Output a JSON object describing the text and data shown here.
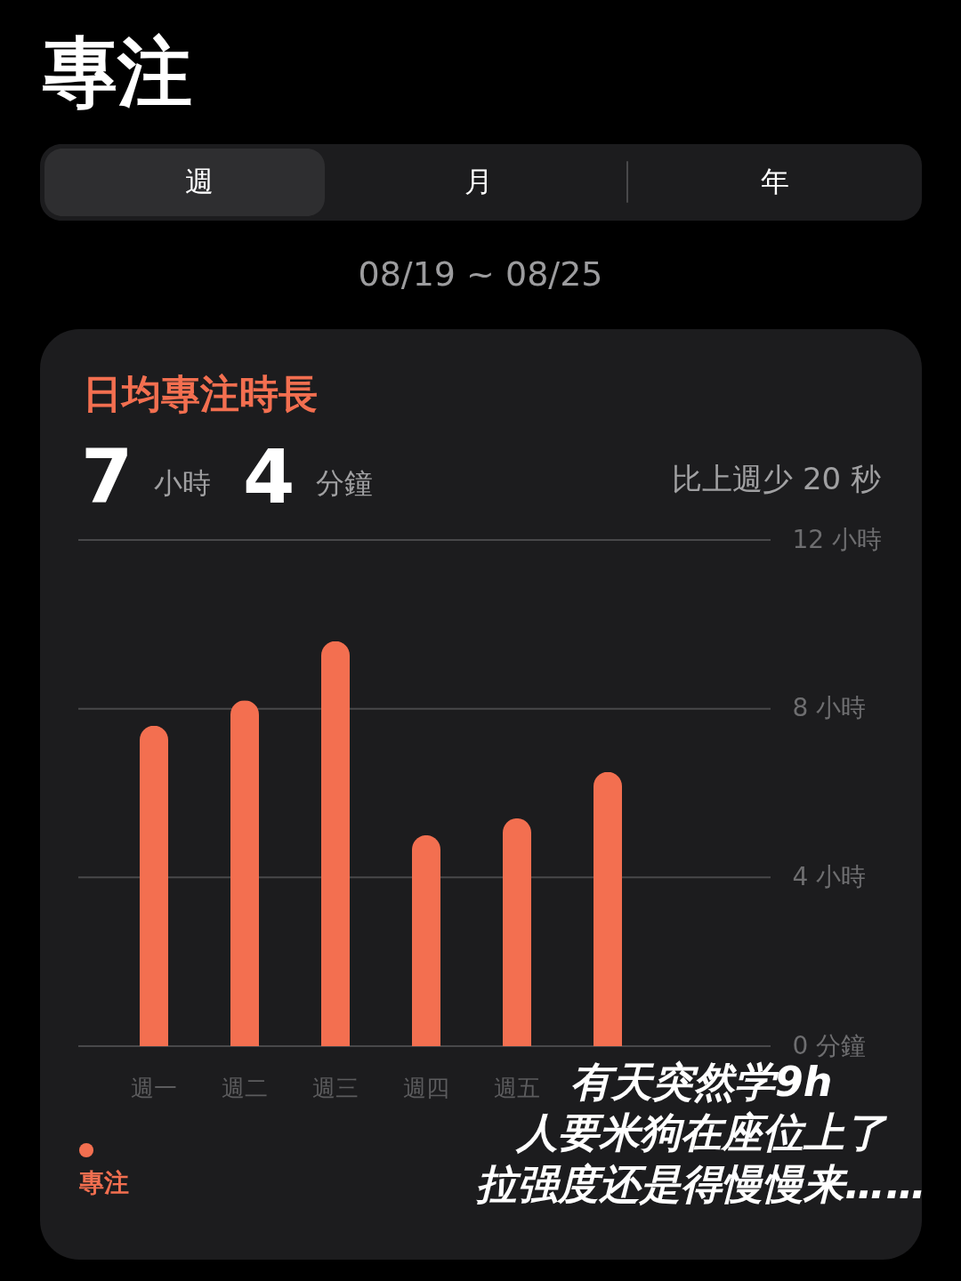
{
  "chart_data": {
    "type": "bar",
    "title": "專注",
    "subtitle": "日均專注時長",
    "annotations": [
      "週",
      "月",
      "年",
      "08/19 ~ 08/25",
      "7 小時 4 分鐘",
      "比上週少 20 秒",
      "有天突然学9h",
      "人要米狗在座位上了",
      "拉强度还是得慢慢来……"
    ],
    "categories": [
      "週一",
      "週二",
      "週三",
      "週四",
      "週五",
      null,
      null
    ],
    "series": [
      {
        "name": "專注",
        "color": "#f36f50",
        "values": [
          7.6,
          8.2,
          9.6,
          5.0,
          5.4,
          6.5,
          null
        ]
      }
    ],
    "ylim": [
      0,
      12
    ],
    "yticks": [
      {
        "value": 0,
        "label": "0 分鐘"
      },
      {
        "value": 4,
        "label": "4 小時"
      },
      {
        "value": 8,
        "label": "8 小時"
      },
      {
        "value": 12,
        "label": "12 小時"
      }
    ],
    "grid": "y",
    "legend": "bottom left"
  }
}
